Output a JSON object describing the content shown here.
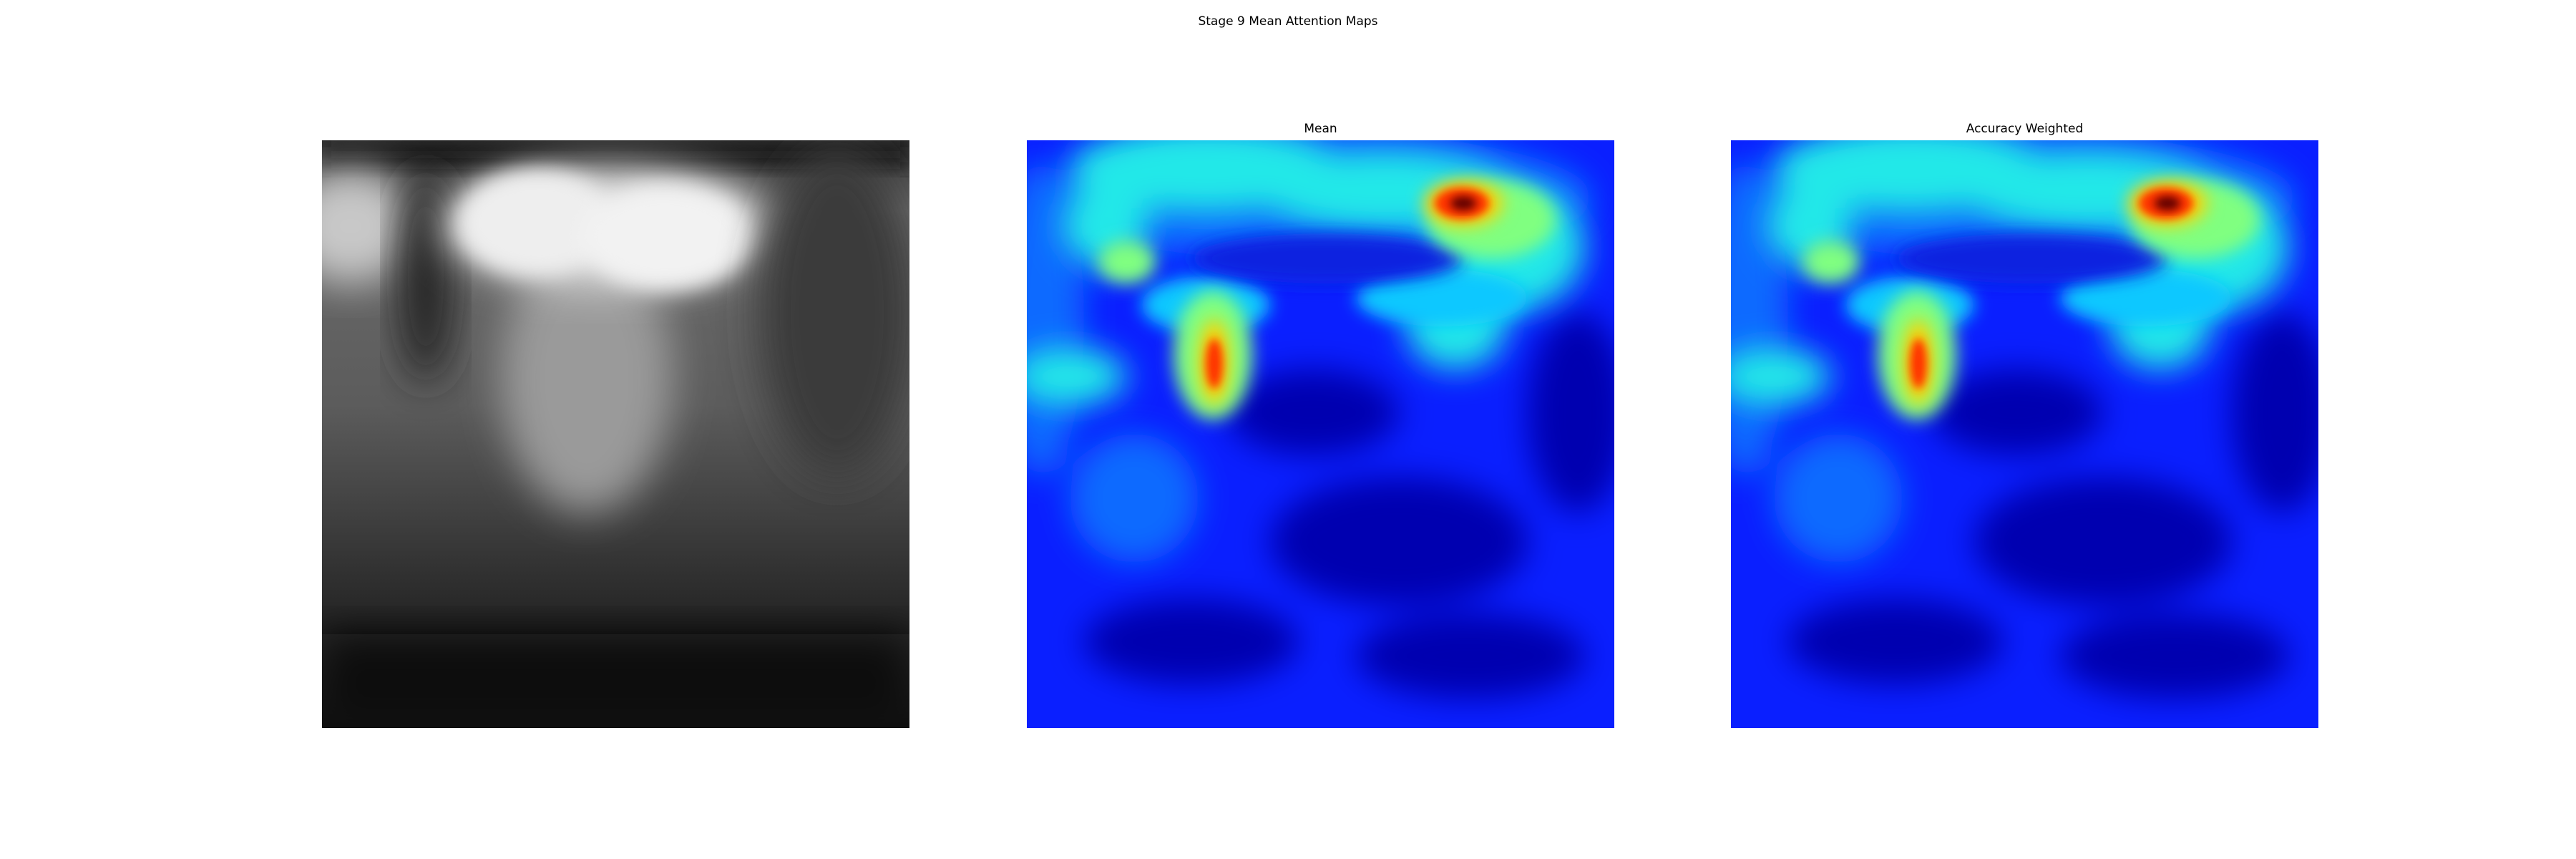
{
  "figure": {
    "title": "Stage 9 Mean Attention Maps",
    "panels": [
      {
        "title": "",
        "kind": "grayscale-xray"
      },
      {
        "title": "Mean",
        "kind": "attention-heatmap",
        "colormap": "jet"
      },
      {
        "title": "Accuracy Weighted",
        "kind": "attention-heatmap",
        "colormap": "jet"
      }
    ]
  }
}
